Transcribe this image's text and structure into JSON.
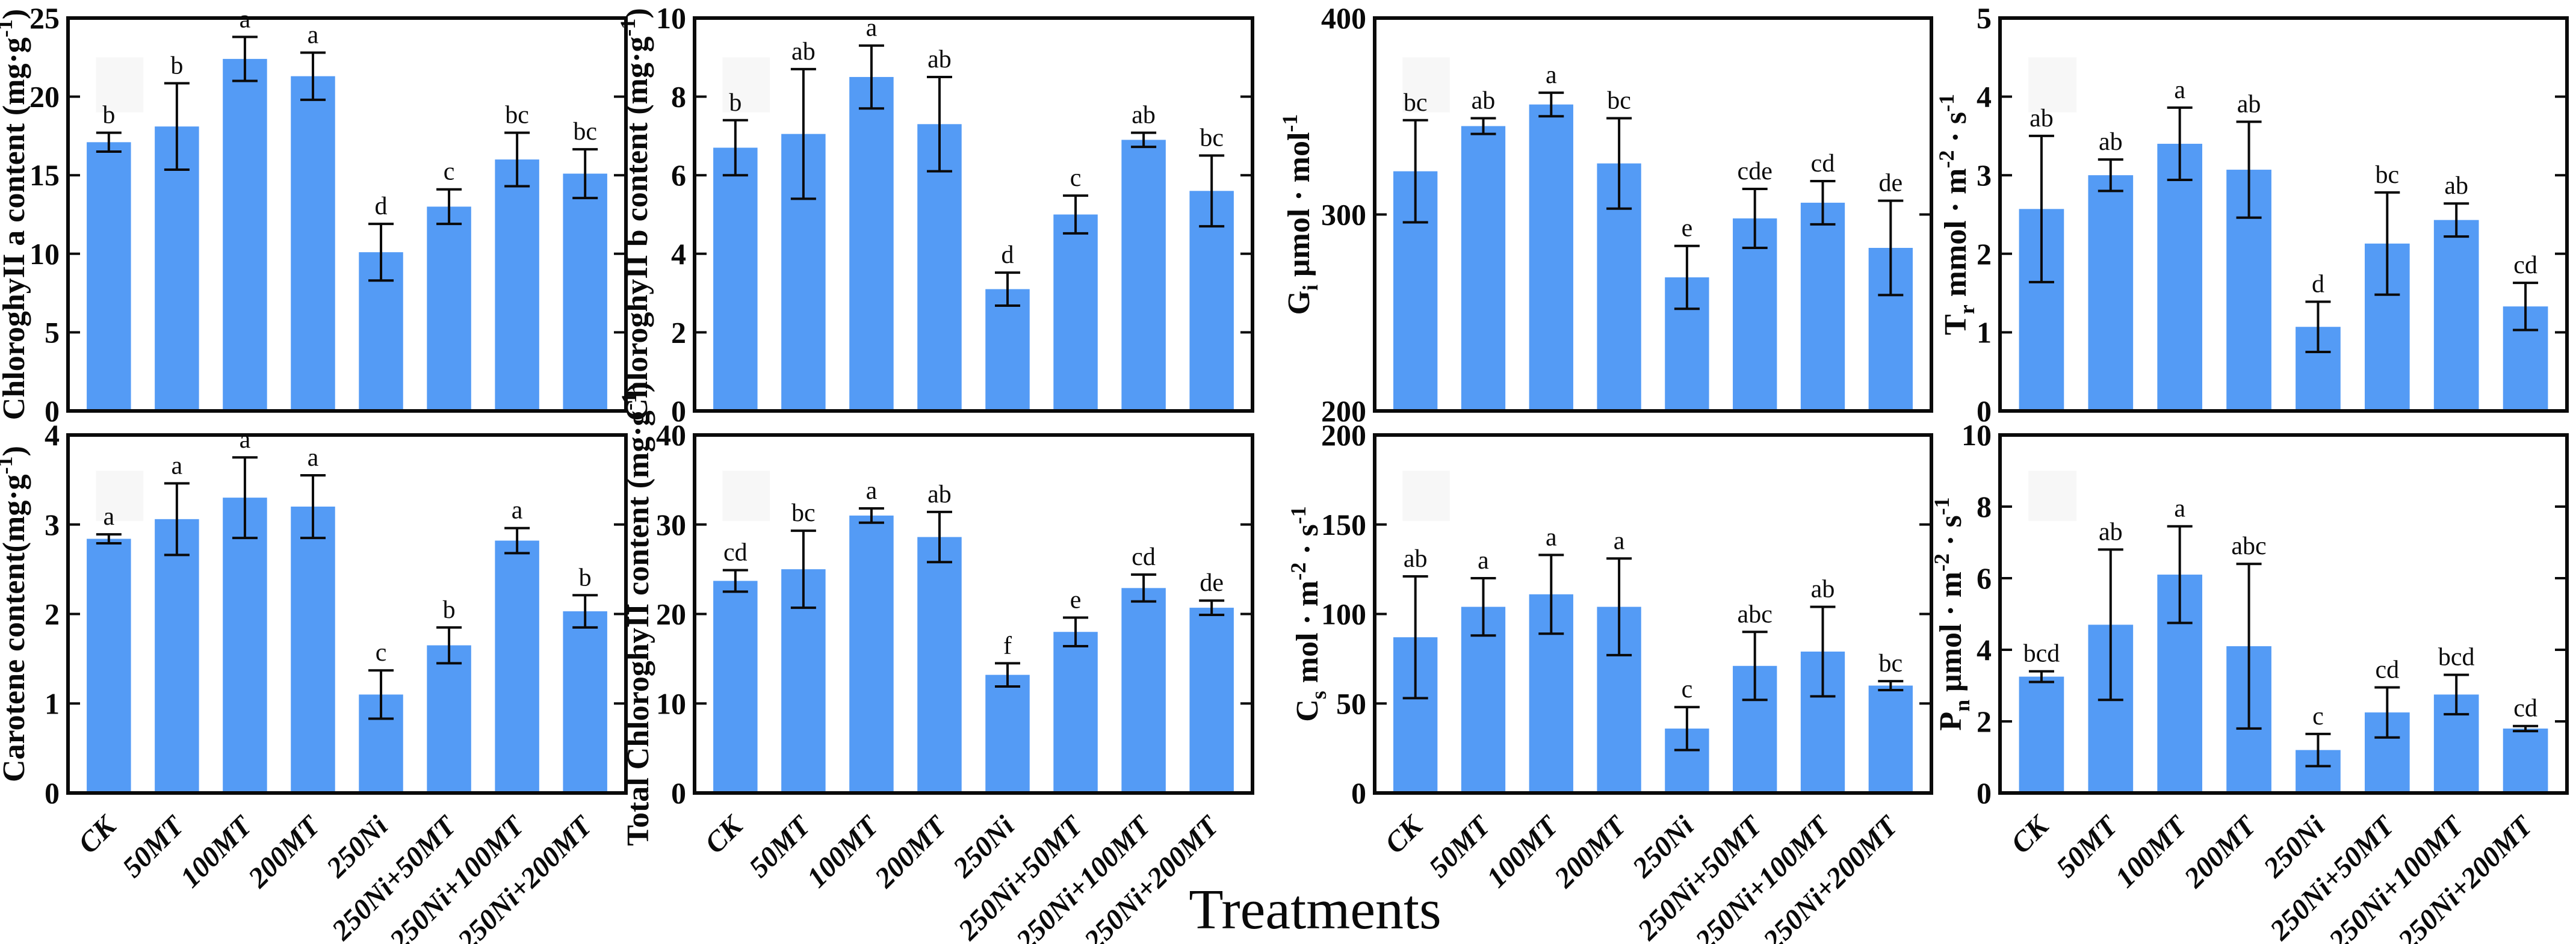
{
  "figure": {
    "xlabel": "Treatments",
    "bar_color": "#549bf5",
    "frame_color": "#0a0a0a",
    "background": "#ffffff",
    "categories": [
      "CK",
      "50MT",
      "100MT",
      "200MT",
      "250Ni",
      "250Ni+50MT",
      "250Ni+100MT",
      "250Ni+200MT"
    ]
  },
  "chart_data": [
    {
      "id": "chlorophyll-a",
      "type": "bar",
      "grid": false,
      "legend": null,
      "ylabel_text": "ChloroghyII a content (mg·g-1)",
      "ylabel_segments": [
        {
          "t": "ChloroghyII a content (mg·g",
          "s": "n"
        },
        {
          "t": "-1",
          "s": "sup"
        },
        {
          "t": ")",
          "s": "n"
        }
      ],
      "ylim": [
        0,
        25
      ],
      "yticks": [
        0,
        5,
        10,
        15,
        20,
        25
      ],
      "values": [
        17.1,
        18.1,
        22.4,
        21.3,
        10.1,
        13.0,
        16.0,
        15.1
      ],
      "errors": [
        0.6,
        2.75,
        1.4,
        1.5,
        1.8,
        1.1,
        1.7,
        1.55
      ],
      "letters": [
        "b",
        "b",
        "a",
        "a",
        "d",
        "c",
        "bc",
        "bc"
      ]
    },
    {
      "id": "chlorophyll-b",
      "type": "bar",
      "grid": false,
      "legend": null,
      "ylabel_text": "ChloroghyII b content (mg·g-1)",
      "ylabel_segments": [
        {
          "t": "ChloroghyII b content (mg·g",
          "s": "n"
        },
        {
          "t": "-1",
          "s": "sup"
        },
        {
          "t": ")",
          "s": "n"
        }
      ],
      "ylim": [
        0,
        10
      ],
      "yticks": [
        0,
        2,
        4,
        6,
        8,
        10
      ],
      "values": [
        6.7,
        7.05,
        8.5,
        7.3,
        3.1,
        5.0,
        6.9,
        5.6
      ],
      "errors": [
        0.7,
        1.65,
        0.8,
        1.2,
        0.42,
        0.48,
        0.18,
        0.9
      ],
      "letters": [
        "b",
        "ab",
        "a",
        "ab",
        "d",
        "c",
        "ab",
        "bc"
      ]
    },
    {
      "id": "gi",
      "type": "bar",
      "grid": false,
      "legend": null,
      "ylabel_text": "Gi μmol · mol-1",
      "ylabel_segments": [
        {
          "t": "G",
          "s": "n"
        },
        {
          "t": "i",
          "s": "sub"
        },
        {
          "t": "  μmol · mol",
          "s": "n"
        },
        {
          "t": "-1",
          "s": "sup"
        }
      ],
      "ylim": [
        200,
        400
      ],
      "yticks": [
        200,
        300,
        400
      ],
      "values": [
        322,
        345,
        356,
        326,
        268,
        298,
        306,
        283
      ],
      "errors": [
        26,
        4,
        6,
        23,
        16,
        15,
        11,
        24
      ],
      "letters": [
        "bc",
        "ab",
        "a",
        "bc",
        "e",
        "cde",
        "cd",
        "de"
      ]
    },
    {
      "id": "tr",
      "type": "bar",
      "grid": false,
      "legend": null,
      "ylabel_text": "Tr mmol · m-2 · s-1",
      "ylabel_segments": [
        {
          "t": "T",
          "s": "n"
        },
        {
          "t": "r",
          "s": "sub"
        },
        {
          "t": "  mmol · m",
          "s": "n"
        },
        {
          "t": "-2",
          "s": "sup"
        },
        {
          "t": " · s",
          "s": "n"
        },
        {
          "t": "-1",
          "s": "sup"
        }
      ],
      "ylim": [
        0,
        5
      ],
      "yticks": [
        0,
        1,
        2,
        3,
        4,
        5
      ],
      "values": [
        2.57,
        3.0,
        3.4,
        3.07,
        1.07,
        2.13,
        2.43,
        1.33
      ],
      "errors": [
        0.93,
        0.2,
        0.46,
        0.61,
        0.32,
        0.65,
        0.21,
        0.3
      ],
      "letters": [
        "ab",
        "ab",
        "a",
        "ab",
        "d",
        "bc",
        "ab",
        "cd"
      ]
    },
    {
      "id": "carotene",
      "type": "bar",
      "grid": false,
      "legend": null,
      "ylabel_text": "Carotene content(mg·g-1)",
      "ylabel_segments": [
        {
          "t": "Carotene content(mg·g",
          "s": "n"
        },
        {
          "t": "-1",
          "s": "sup"
        },
        {
          "t": ")",
          "s": "n"
        }
      ],
      "ylim": [
        0,
        4
      ],
      "yticks": [
        0,
        1,
        2,
        3,
        4
      ],
      "values": [
        2.84,
        3.06,
        3.3,
        3.2,
        1.1,
        1.65,
        2.82,
        2.03
      ],
      "errors": [
        0.05,
        0.4,
        0.45,
        0.35,
        0.27,
        0.2,
        0.14,
        0.18
      ],
      "letters": [
        "a",
        "a",
        "a",
        "a",
        "c",
        "b",
        "a",
        "b"
      ]
    },
    {
      "id": "total-chlorophyll",
      "type": "bar",
      "grid": false,
      "legend": null,
      "ylabel_text": "Total ChloroghyII content (mg·g-1)",
      "ylabel_segments": [
        {
          "t": "Total ChloroghyII content (mg·g",
          "s": "n"
        },
        {
          "t": "-1",
          "s": "sup"
        },
        {
          "t": ")",
          "s": "n"
        }
      ],
      "ylim": [
        0,
        40
      ],
      "yticks": [
        0,
        10,
        20,
        30,
        40
      ],
      "values": [
        23.7,
        25.0,
        31.0,
        28.6,
        13.2,
        18.0,
        22.9,
        20.7
      ],
      "errors": [
        1.2,
        4.3,
        0.8,
        2.8,
        1.3,
        1.6,
        1.5,
        0.8
      ],
      "letters": [
        "cd",
        "bc",
        "a",
        "ab",
        "f",
        "e",
        "cd",
        "de"
      ]
    },
    {
      "id": "cs",
      "type": "bar",
      "grid": false,
      "legend": null,
      "ylabel_text": "Cs mol · m-2 · s-1",
      "ylabel_segments": [
        {
          "t": "C",
          "s": "n"
        },
        {
          "t": "s",
          "s": "sub"
        },
        {
          "t": "  mol · m",
          "s": "n"
        },
        {
          "t": "-2",
          "s": "sup"
        },
        {
          "t": " · s",
          "s": "n"
        },
        {
          "t": "-1",
          "s": "sup"
        }
      ],
      "ylim": [
        0,
        200
      ],
      "yticks": [
        0,
        50,
        100,
        150,
        200
      ],
      "values": [
        87,
        104,
        111,
        104,
        36,
        71,
        79,
        60
      ],
      "errors": [
        34,
        16,
        22,
        27,
        12,
        19,
        25,
        2.5
      ],
      "letters": [
        "ab",
        "a",
        "a",
        "a",
        "c",
        "abc",
        "ab",
        "bc"
      ]
    },
    {
      "id": "pn",
      "type": "bar",
      "grid": false,
      "legend": null,
      "ylabel_text": "Pn μmol · m-2 · s-1",
      "ylabel_segments": [
        {
          "t": "P",
          "s": "n"
        },
        {
          "t": "n",
          "s": "sub"
        },
        {
          "t": "  μmol · m",
          "s": "n"
        },
        {
          "t": "-2",
          "s": "sup"
        },
        {
          "t": " · s",
          "s": "n"
        },
        {
          "t": "-1",
          "s": "sup"
        }
      ],
      "ylim": [
        0,
        10
      ],
      "yticks": [
        0,
        2,
        4,
        6,
        8,
        10
      ],
      "values": [
        3.25,
        4.7,
        6.1,
        4.1,
        1.2,
        2.25,
        2.75,
        1.8
      ],
      "errors": [
        0.15,
        2.1,
        1.35,
        2.3,
        0.45,
        0.7,
        0.55,
        0.07
      ],
      "letters": [
        "bcd",
        "ab",
        "a",
        "abc",
        "c",
        "cd",
        "bcd",
        "cd"
      ]
    }
  ]
}
